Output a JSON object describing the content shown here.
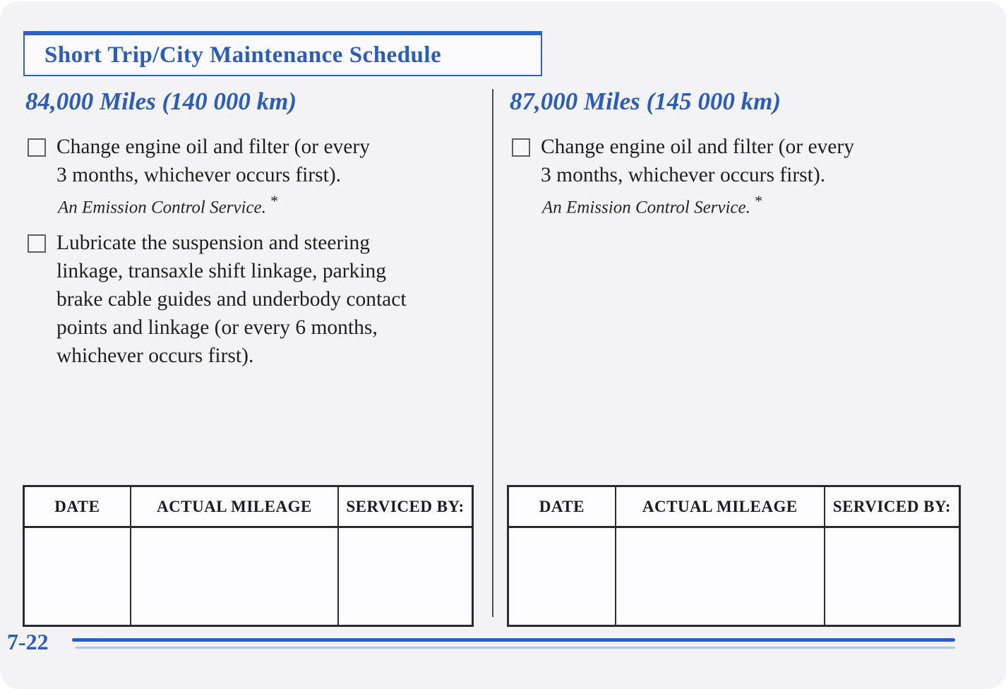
{
  "document": {
    "section_title": "Short Trip/City Maintenance Schedule",
    "page_number": "7-22"
  },
  "colors": {
    "accent_blue": "#2a5cc0",
    "footer_rule_dark": "#2b5ec6",
    "footer_rule_light": "#aac8e8",
    "body_text": "#1f1f1f",
    "table_border": "#2b2b2b"
  },
  "columns": [
    {
      "heading": "84,000 Miles (140 000 km)",
      "items": [
        {
          "lines": [
            "Change engine oil and filter (or every",
            "3 months, whichever occurs first)."
          ],
          "note": "An Emission Control Service.",
          "note_mark": "*"
        },
        {
          "lines": [
            "Lubricate the suspension and steering",
            "linkage, transaxle shift linkage, parking",
            "brake cable guides and underbody contact",
            "points and linkage (or every 6 months,",
            "whichever occurs first)."
          ]
        }
      ],
      "table": {
        "headers": [
          "DATE",
          "ACTUAL MILEAGE",
          "SERVICED BY:"
        ],
        "rows": [
          [
            "",
            "",
            ""
          ]
        ]
      }
    },
    {
      "heading": "87,000 Miles (145 000 km)",
      "items": [
        {
          "lines": [
            "Change engine oil and filter (or every",
            "3 months, whichever occurs first)."
          ],
          "note": "An Emission Control Service.",
          "note_mark": "*"
        }
      ],
      "table": {
        "headers": [
          "DATE",
          "ACTUAL MILEAGE",
          "SERVICED BY:"
        ],
        "rows": [
          [
            "",
            "",
            ""
          ]
        ]
      }
    }
  ]
}
